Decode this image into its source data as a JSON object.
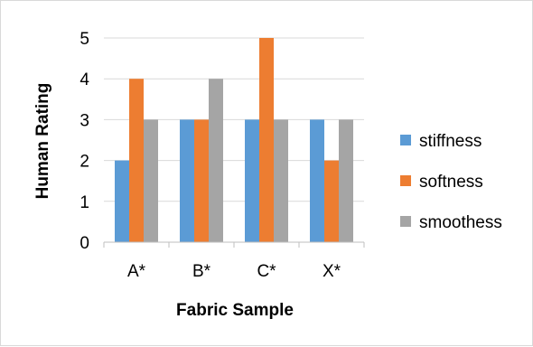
{
  "chart_data": {
    "type": "bar",
    "categories": [
      "A*",
      "B*",
      "C*",
      "X*"
    ],
    "series": [
      {
        "name": "stiffness",
        "values": [
          2,
          3,
          3,
          3
        ],
        "color": "#5b9bd5"
      },
      {
        "name": "softness",
        "values": [
          4,
          3,
          5,
          2
        ],
        "color": "#ed7d31"
      },
      {
        "name": "smoothess",
        "values": [
          3,
          4,
          3,
          3
        ],
        "color": "#a5a5a5"
      }
    ],
    "xlabel": "Fabric Sample",
    "ylabel": "Human Rating",
    "ylim": [
      0,
      5
    ],
    "yticks": [
      0,
      1,
      2,
      3,
      4,
      5
    ],
    "grid": true,
    "legend_position": "right"
  }
}
